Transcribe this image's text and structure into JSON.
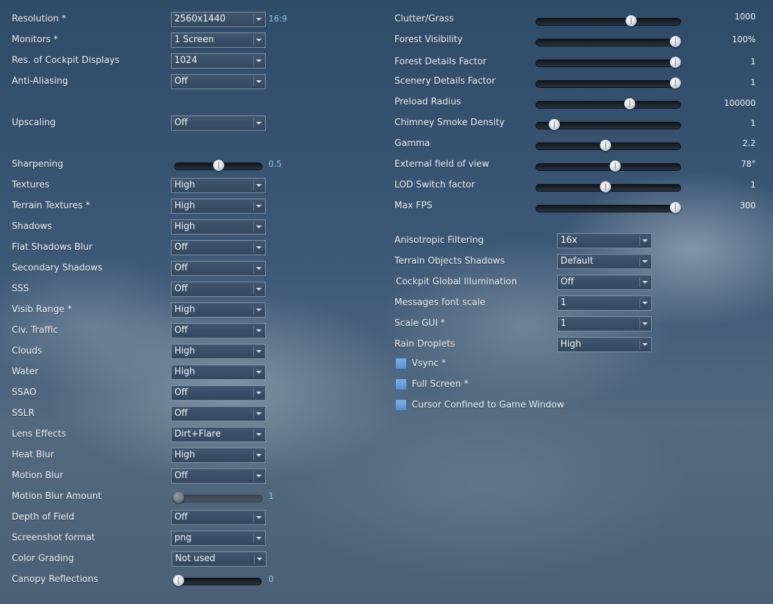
{
  "left": {
    "resolution": {
      "label": "Resolution *",
      "value": "2560x1440",
      "aspect": "16:9"
    },
    "monitors": {
      "label": "Monitors *",
      "value": "1 Screen"
    },
    "cockpit_res": {
      "label": "Res. of Cockpit Displays",
      "value": "1024"
    },
    "antialiasing": {
      "label": "Anti-Aliasing",
      "value": "Off"
    },
    "upscaling": {
      "label": "Upscaling",
      "value": "Off"
    },
    "sharpening": {
      "label": "Sharpening",
      "value": "0.5",
      "level": 0.5
    },
    "textures": {
      "label": "Textures",
      "value": "High"
    },
    "terrain_textures": {
      "label": "Terrain Textures *",
      "value": "High"
    },
    "shadows": {
      "label": "Shadows",
      "value": "High"
    },
    "flat_shadows_blur": {
      "label": "Flat Shadows Blur",
      "value": "Off"
    },
    "secondary_shadows": {
      "label": "Secondary Shadows",
      "value": "Off"
    },
    "sss": {
      "label": "SSS",
      "value": "Off"
    },
    "visib_range": {
      "label": "Visib Range *",
      "value": "High"
    },
    "civ_traffic": {
      "label": "Civ. Traffic",
      "value": "Off"
    },
    "clouds": {
      "label": "Clouds",
      "value": "High"
    },
    "water": {
      "label": "Water",
      "value": "High"
    },
    "ssao": {
      "label": "SSAO",
      "value": "Off"
    },
    "sslr": {
      "label": "SSLR",
      "value": "Off"
    },
    "lens_effects": {
      "label": "Lens Effects",
      "value": "Dirt+Flare"
    },
    "heat_blur": {
      "label": "Heat Blur",
      "value": "High"
    },
    "motion_blur": {
      "label": "Motion Blur",
      "value": "Off"
    },
    "motion_blur_amount": {
      "label": "Motion Blur Amount",
      "value": "1",
      "level": 0.0
    },
    "depth_of_field": {
      "label": "Depth of Field",
      "value": "Off"
    },
    "screenshot_format": {
      "label": "Screenshot format",
      "value": "png"
    },
    "color_grading": {
      "label": "Color Grading",
      "value": "Not used"
    },
    "canopy_reflections": {
      "label": "Canopy Reflections",
      "value": "0",
      "level": 0.0
    }
  },
  "right": {
    "clutter_grass": {
      "label": "Clutter/Grass",
      "value": "1000",
      "level": 0.67
    },
    "forest_visibility": {
      "label": "Forest Visibility",
      "value": "100%",
      "level": 1.0
    },
    "forest_details": {
      "label": "Forest Details Factor",
      "value": "1",
      "level": 1.0
    },
    "scenery_details": {
      "label": "Scenery Details Factor",
      "value": "1",
      "level": 1.0
    },
    "preload_radius": {
      "label": "Preload Radius",
      "value": "100000",
      "level": 0.66
    },
    "chimney_smoke": {
      "label": "Chimney Smoke Density",
      "value": "1",
      "level": 0.1
    },
    "gamma": {
      "label": "Gamma",
      "value": "2.2",
      "level": 0.48
    },
    "external_fov": {
      "label": "External field of view",
      "value": "78°",
      "level": 0.55
    },
    "lod_switch": {
      "label": "LOD Switch factor",
      "value": "1",
      "level": 0.48
    },
    "max_fps": {
      "label": "Max FPS",
      "value": "300",
      "level": 1.0
    },
    "anisotropic": {
      "label": "Anisotropic Filtering",
      "value": "16x"
    },
    "terrain_object_shadows": {
      "label": "Terrain Objects Shadows",
      "value": "Default"
    },
    "cockpit_gi": {
      "label": "Cockpit Global Illumination",
      "value": "Off"
    },
    "messages_font_scale": {
      "label": "Messages font scale",
      "value": "1"
    },
    "scale_gui": {
      "label": "Scale GUI *",
      "value": "1"
    },
    "rain_droplets": {
      "label": "Rain Droplets",
      "value": "High"
    },
    "vsync": {
      "label": "Vsync *"
    },
    "full_screen": {
      "label": "Full Screen *"
    },
    "cursor_confined": {
      "label": "Cursor Confined to Game Window"
    }
  },
  "icons": {
    "dropdown": "chevron-down-icon",
    "checkbox": "checkbox-icon"
  },
  "colors": {
    "accent_value": "#8ec9ec",
    "checkbox": "#6a9fdc"
  }
}
